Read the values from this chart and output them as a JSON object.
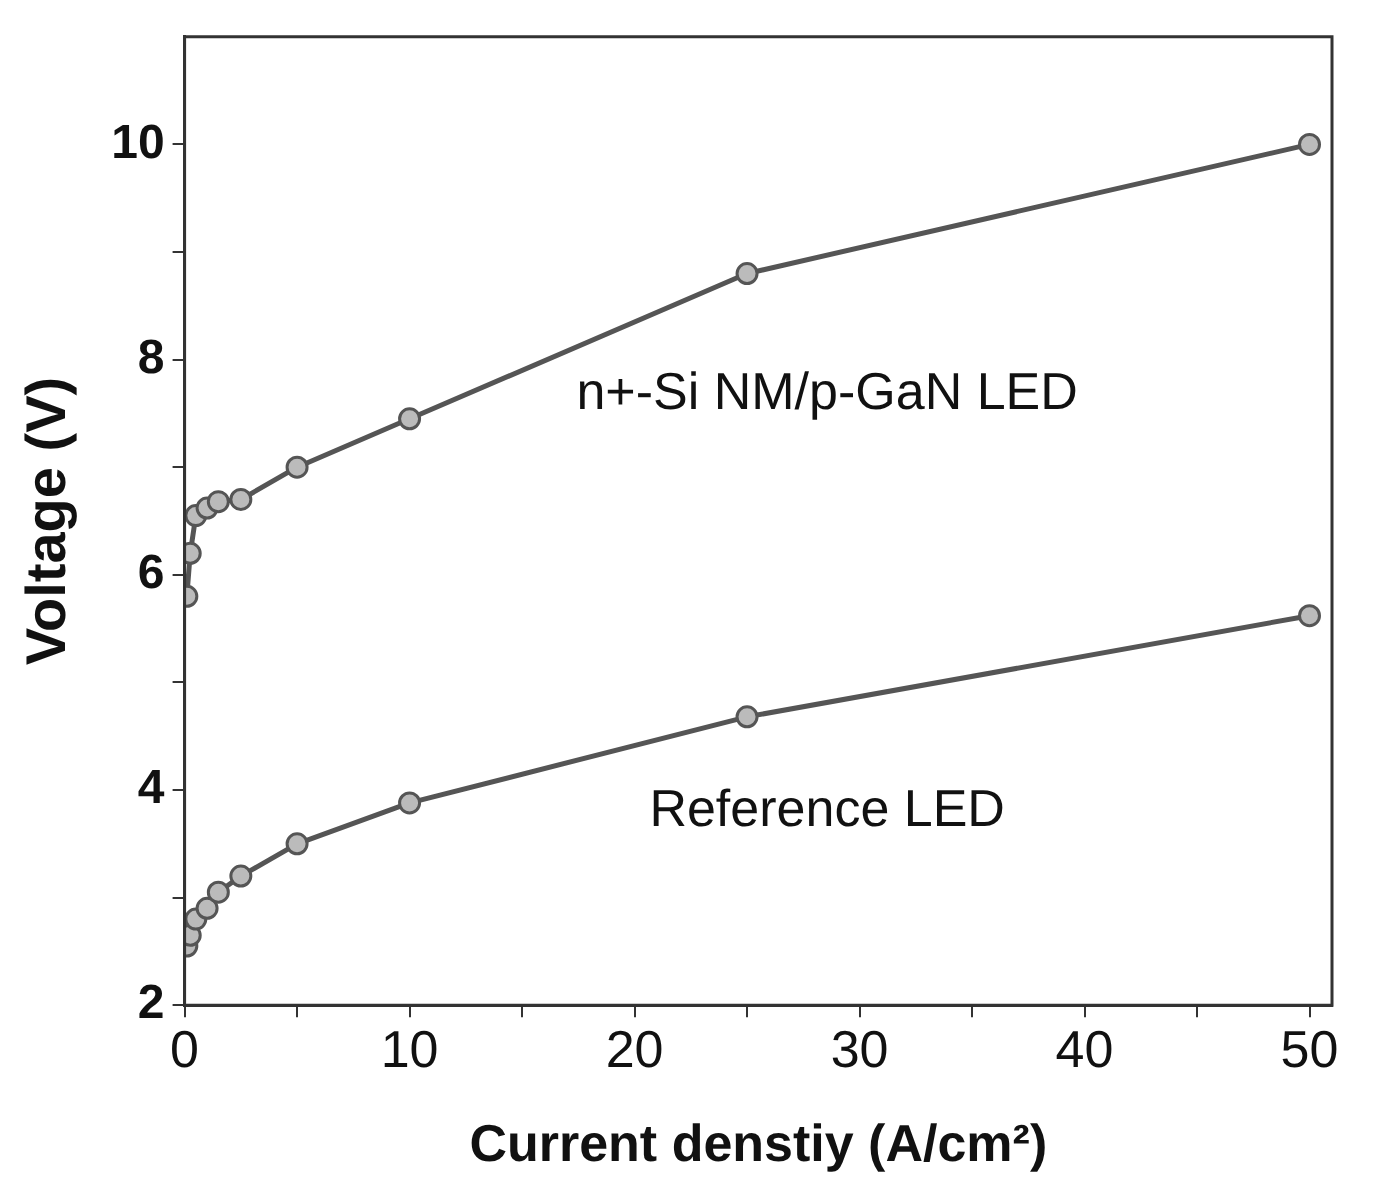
{
  "chart_data": {
    "type": "line",
    "xlabel": "Current denstiy (A/cm²)",
    "ylabel": "Voltage (V)",
    "xlim": [
      0,
      51
    ],
    "ylim": [
      2,
      11
    ],
    "xticks": [
      0,
      {
        "value": 5,
        "label": null
      },
      10,
      {
        "value": 15,
        "label": null
      },
      20,
      {
        "value": 25,
        "label": null
      },
      30,
      {
        "value": 35,
        "label": null
      },
      40,
      {
        "value": 45,
        "label": null
      },
      50
    ],
    "yticks": [
      2,
      {
        "value": 3,
        "label": null
      },
      4,
      {
        "value": 5,
        "label": null
      },
      6,
      {
        "value": 7,
        "label": null
      },
      8,
      {
        "value": 9,
        "label": null
      },
      10
    ],
    "marker": "circle",
    "line_style": "solid",
    "grid": false,
    "legend": false,
    "series": [
      {
        "color": "#555555",
        "x": [
          0.1,
          0.25,
          0.5,
          1,
          1.5,
          2.5,
          5,
          10,
          25,
          50
        ],
        "values": [
          5.8,
          6.2,
          6.55,
          6.62,
          6.68,
          6.7,
          7.0,
          7.45,
          8.8,
          10.0
        ]
      },
      {
        "color": "#555555",
        "x": [
          0.1,
          0.25,
          0.5,
          1,
          1.5,
          2.5,
          5,
          10,
          25,
          50
        ],
        "values": [
          2.55,
          2.65,
          2.8,
          2.9,
          3.05,
          3.2,
          3.5,
          3.88,
          4.68,
          5.62
        ]
      }
    ],
    "annotations": [
      "n+-Si NM/p-GaN LED",
      "Reference LED"
    ]
  }
}
